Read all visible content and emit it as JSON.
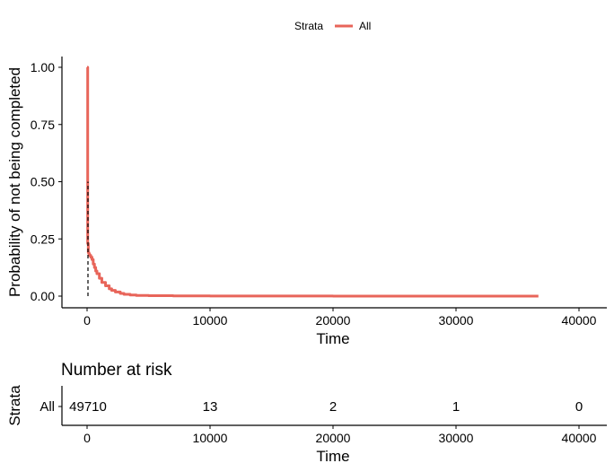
{
  "chart_data": [
    {
      "type": "line",
      "legend": {
        "title": "Strata",
        "placement": "top-center"
      },
      "series": [
        {
          "name": "All",
          "color": "#E8655A",
          "x": [
            0,
            50,
            50,
            100,
            150,
            200,
            300,
            400,
            500,
            600,
            700,
            800,
            1000,
            1200,
            1500,
            1800,
            2000,
            2300,
            2700,
            3000,
            3500,
            4000,
            5000,
            7000,
            10000,
            20000,
            30000,
            36700
          ],
          "y": [
            1.0,
            1.0,
            0.23,
            0.19,
            0.185,
            0.178,
            0.17,
            0.16,
            0.14,
            0.125,
            0.11,
            0.098,
            0.078,
            0.06,
            0.045,
            0.032,
            0.025,
            0.018,
            0.012,
            0.008,
            0.005,
            0.003,
            0.002,
            0.001,
            0.0005,
            0.0002,
            0.0001,
            0.0001
          ]
        }
      ],
      "median_line": {
        "x": 0,
        "y": [
          0,
          0.5
        ],
        "style": "dashed"
      },
      "xlabel": "Time",
      "ylabel": "Probability of not being completed",
      "xlim": [
        -2000,
        42000
      ],
      "ylim": [
        -0.05,
        1.05
      ],
      "x_ticks": [
        0,
        10000,
        20000,
        30000,
        40000
      ],
      "x_tick_labels": [
        "0",
        "10000",
        "20000",
        "30000",
        "40000"
      ],
      "y_ticks": [
        0,
        0.25,
        0.5,
        0.75,
        1.0
      ],
      "y_tick_labels": [
        "0.00",
        "0.25",
        "0.50",
        "0.75",
        "1.00"
      ],
      "grid": false
    },
    {
      "type": "table",
      "title": "Number at risk",
      "xlabel": "Time",
      "ylabel": "Strata",
      "rows": [
        {
          "label": "All",
          "color": "#E8655A",
          "times": [
            0,
            10000,
            20000,
            30000,
            40000
          ],
          "values": [
            "49710",
            "13",
            "2",
            "1",
            "0"
          ]
        }
      ],
      "x_ticks": [
        0,
        10000,
        20000,
        30000,
        40000
      ],
      "x_tick_labels": [
        "0",
        "10000",
        "20000",
        "30000",
        "40000"
      ]
    }
  ]
}
